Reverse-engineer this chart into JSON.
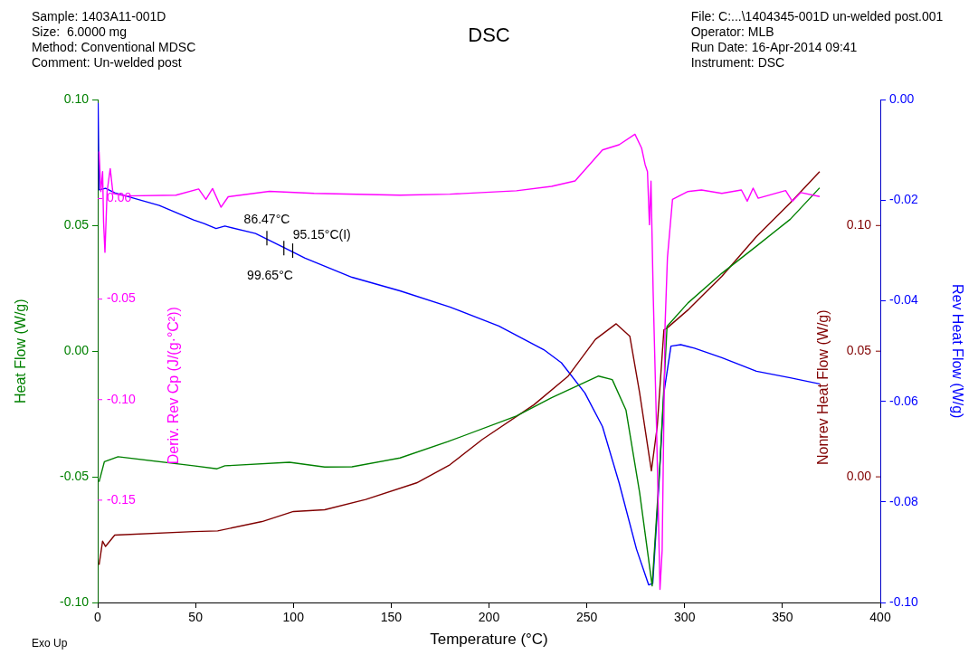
{
  "chart_data": [
    {
      "type": "line",
      "title": "DSC",
      "xlabel": "Temperature (°C)",
      "ylabel": "Heat Flow (W/g)",
      "y2label": "Nonrev Heat Flow (W/g)",
      "y3label": "Rev Heat Flow (W/g)",
      "xlim": [
        0,
        400
      ],
      "xticks": [
        0,
        50,
        100,
        150,
        200,
        250,
        300,
        350,
        400
      ],
      "ylim": [
        -0.1,
        0.1
      ],
      "yticks": [
        {
          "value": -0.1,
          "label": "-0.10"
        },
        {
          "value": -0.05,
          "label": "-0.05"
        },
        {
          "value": 0,
          "label": "0.00"
        },
        {
          "value": 0.05,
          "label": "0.05"
        },
        {
          "value": 0.1,
          "label": "0.10"
        }
      ],
      "y2lim": [
        -0.05,
        0.15
      ],
      "y2ticks": [
        {
          "value": 0,
          "label": "0.00"
        },
        {
          "value": 0.05,
          "label": "0.05"
        },
        {
          "value": 0.1,
          "label": "0.10"
        }
      ],
      "y3lim": [
        -0.1,
        0
      ],
      "y3ticks": [
        {
          "value": -0.1,
          "label": "-0.10"
        },
        {
          "value": -0.08,
          "label": "-0.08"
        },
        {
          "value": -0.06,
          "label": "-0.06"
        },
        {
          "value": -0.04,
          "label": "-0.04"
        },
        {
          "value": -0.02,
          "label": "-0.02"
        },
        {
          "value": 0,
          "label": "0.00"
        }
      ],
      "series": [
        {
          "color": "#008000",
          "x": [
            0.7,
            3.4,
            10.4,
            49,
            61,
            65,
            98,
            116,
            130,
            154.5,
            179,
            214,
            232,
            256,
            263,
            270,
            277,
            283.4,
            287.5,
            291,
            301.7,
            319,
            336.7,
            354,
            369
          ],
          "values": [
            -0.052,
            -0.044,
            -0.042,
            -0.0456,
            -0.0468,
            -0.0456,
            -0.0442,
            -0.0461,
            -0.046,
            -0.0425,
            -0.036,
            -0.0258,
            -0.0185,
            -0.0099,
            -0.0113,
            -0.0234,
            -0.0563,
            -0.0934,
            -0.043,
            0.0099,
            0.0192,
            0.031,
            0.0418,
            0.0525,
            0.065
          ]
        },
        {
          "color": "#800000",
          "axis": "y2",
          "x": [
            0.7,
            2.5,
            4,
            8.7,
            49,
            61.3,
            84,
            100,
            116,
            137,
            163,
            180,
            196.6,
            223,
            240.5,
            254.4,
            265,
            272,
            277,
            283,
            286,
            289.4,
            291,
            301.7,
            319,
            336.7,
            354,
            369
          ],
          "values": [
            -0.035,
            -0.0256,
            -0.0277,
            -0.0232,
            -0.0218,
            -0.0215,
            -0.0178,
            -0.0138,
            -0.0131,
            -0.009,
            -0.0024,
            0.0048,
            0.0149,
            0.0287,
            0.0401,
            0.0547,
            0.0609,
            0.0559,
            0.0334,
            0.0024,
            0.0201,
            0.0585,
            0.0592,
            0.0664,
            0.0798,
            0.0956,
            0.109,
            0.1214
          ]
        },
        {
          "color": "#0000ff",
          "axis": "y3",
          "x": [
            0.2,
            0.7,
            4,
            8.7,
            31.5,
            49,
            54.4,
            60.5,
            65,
            80.7,
            94.7,
            106,
            130,
            154.5,
            180,
            205,
            228,
            237,
            249,
            258,
            266.5,
            275.4,
            281.6,
            283.7,
            286.6,
            289.4,
            293,
            298,
            305,
            319,
            336.7,
            354,
            369
          ],
          "values": [
            -0.0006,
            -0.0179,
            -0.0176,
            -0.0185,
            -0.021,
            -0.0239,
            -0.0246,
            -0.0256,
            -0.0251,
            -0.0266,
            -0.0293,
            -0.0315,
            -0.0353,
            -0.038,
            -0.0412,
            -0.045,
            -0.0497,
            -0.0523,
            -0.0583,
            -0.065,
            -0.0762,
            -0.0894,
            -0.0965,
            -0.0962,
            -0.0782,
            -0.0583,
            -0.049,
            -0.0487,
            -0.0494,
            -0.0513,
            -0.054,
            -0.0553,
            -0.0565
          ]
        }
      ],
      "annotations": [
        "Sample: 1403A11-001D",
        "Size:  6.0000 mg",
        "Method: Conventional MDSC",
        "Comment: Un-welded post",
        "File: C:...\\1404345-001D un-welded post.001",
        "Operator: MLB",
        "Run Date: 16-Apr-2014 09:41",
        "Instrument: DSC",
        "Exo Up",
        {
          "text": "86.47°C",
          "x": 86.47,
          "y": 0.045
        },
        {
          "text": "95.15°C(I)",
          "x": 95.15,
          "y": 0.041
        },
        {
          "text": "99.65°C",
          "x": 99.65,
          "y": 0.04
        }
      ]
    },
    {
      "type": "line",
      "ylabel": "Deriv. Rev Cp (J/(g·°C²))",
      "tick_labels": "y",
      "xlim": [
        0,
        400
      ],
      "ylim": [
        -0.2,
        0.05
      ],
      "yticks": [
        {
          "value": -0.15,
          "label": "-0.15"
        },
        {
          "value": -0.1,
          "label": "-0.10"
        },
        {
          "value": -0.05,
          "label": "-0.05"
        },
        {
          "value": 0,
          "label": "0.00"
        }
      ],
      "series": [
        {
          "color": "#ff00ff",
          "x": [
            0.7,
            1.6,
            2.5,
            3,
            3.7,
            4.8,
            6.4,
            7.8,
            14,
            40,
            51.6,
            55.3,
            58.7,
            63,
            66.7,
            87.8,
            110.6,
            154.5,
            180,
            214,
            232,
            244,
            258,
            266.5,
            274.6,
            278,
            279.8,
            281,
            282,
            282.8,
            283.9,
            285.6,
            287.4,
            288.5,
            290,
            291.2,
            293.8,
            301.7,
            308.6,
            319,
            329,
            332,
            335,
            337.6,
            351.6,
            355,
            359.4,
            369
          ],
          "values": [
            0.0234,
            0.0035,
            0.0134,
            -0.0117,
            -0.0267,
            0.0035,
            0.0149,
            0.0026,
            0.0013,
            0.0017,
            0.0048,
            -0.0004,
            0.005,
            -0.0043,
            0.0009,
            0.0036,
            0.0026,
            0.0017,
            0.0022,
            0.0039,
            0.0061,
            0.0088,
            0.0242,
            0.0268,
            0.032,
            0.0251,
            0.0169,
            0.0134,
            -0.013,
            0.0087,
            -0.0463,
            -0.1126,
            -0.1944,
            -0.175,
            -0.0628,
            -0.0294,
            -0.0004,
            0.0035,
            0.0043,
            0.0026,
            0.0043,
            -0.0013,
            0.0052,
            0.0002,
            0.004,
            -0.0013,
            0.003,
            0.001
          ]
        }
      ]
    }
  ]
}
